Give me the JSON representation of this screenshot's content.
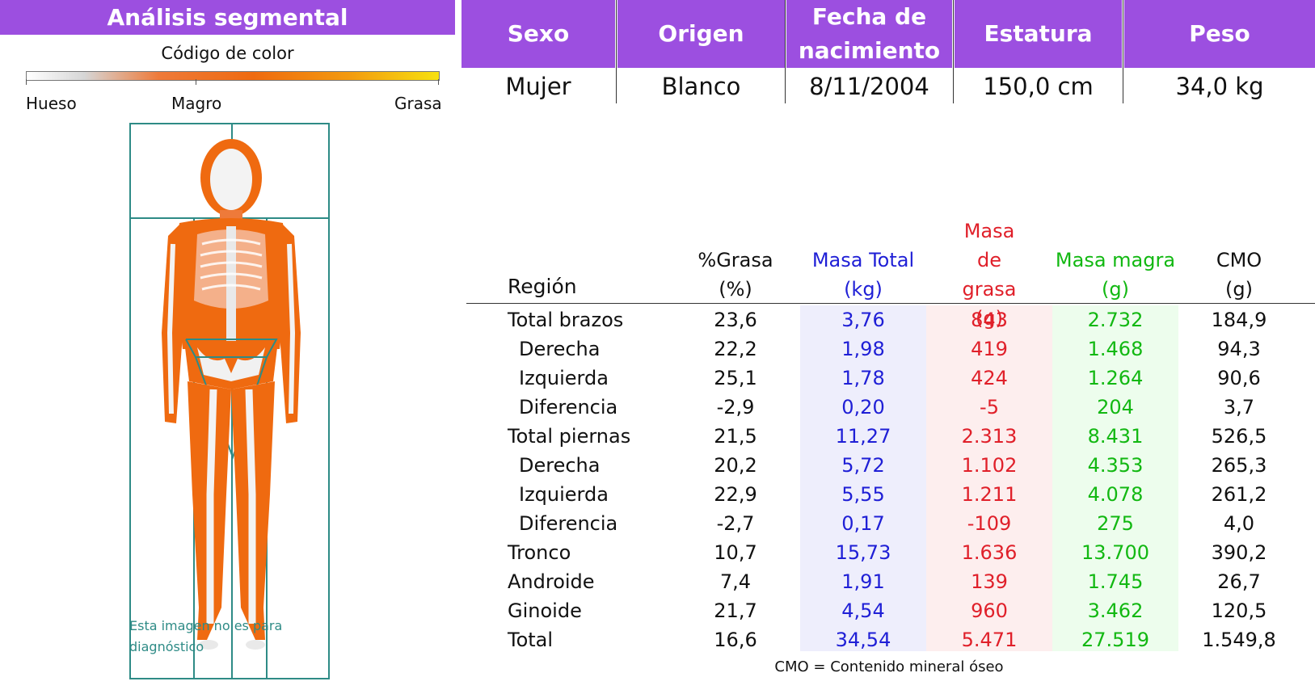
{
  "left_panel": {
    "title": "Análisis segmental",
    "color_code_label": "Código de color",
    "scale_labels": [
      "Hueso",
      "Magro",
      "Grasa"
    ],
    "watermark_line1": "Esta imagen no es para",
    "watermark_line2": "diagnóstico"
  },
  "patient": {
    "headers": [
      "Sexo",
      "Origen",
      "Fecha de nacimiento",
      "Estatura",
      "Peso"
    ],
    "values": [
      "Mujer",
      "Blanco",
      "8/11/2004",
      "150,0 cm",
      "34,0 kg"
    ]
  },
  "composition": {
    "region_header": "Región",
    "columns": [
      {
        "name": "%Grasa",
        "unit": "(%)"
      },
      {
        "name": "Masa Total",
        "unit": "(kg)"
      },
      {
        "name": "Masa de grasa",
        "unit": "(g)"
      },
      {
        "name": "Masa magra",
        "unit": "(g)"
      },
      {
        "name": "CMO",
        "unit": "(g)"
      }
    ],
    "rows": [
      {
        "region": "Total brazos",
        "cells": [
          "23,6",
          "3,76",
          "843",
          "2.732",
          "184,9"
        ]
      },
      {
        "region": "Derecha",
        "cells": [
          "22,2",
          "1,98",
          "419",
          "1.468",
          "94,3"
        ]
      },
      {
        "region": "Izquierda",
        "cells": [
          "25,1",
          "1,78",
          "424",
          "1.264",
          "90,6"
        ]
      },
      {
        "region": "Diferencia",
        "cells": [
          "-2,9",
          "0,20",
          "-5",
          "204",
          "3,7"
        ]
      },
      {
        "region": "Total piernas",
        "cells": [
          "21,5",
          "11,27",
          "2.313",
          "8.431",
          "526,5"
        ]
      },
      {
        "region": "Derecha",
        "cells": [
          "20,2",
          "5,72",
          "1.102",
          "4.353",
          "265,3"
        ]
      },
      {
        "region": "Izquierda",
        "cells": [
          "22,9",
          "5,55",
          "1.211",
          "4.078",
          "261,2"
        ]
      },
      {
        "region": "Diferencia",
        "cells": [
          "-2,7",
          "0,17",
          "-109",
          "275",
          "4,0"
        ]
      },
      {
        "region": "Tronco",
        "cells": [
          "10,7",
          "15,73",
          "1.636",
          "13.700",
          "390,2"
        ]
      },
      {
        "region": "Androide",
        "cells": [
          "7,4",
          "1,91",
          "139",
          "1.745",
          "26,7"
        ]
      },
      {
        "region": "Ginoide",
        "cells": [
          "21,7",
          "4,54",
          "960",
          "3.462",
          "120,5"
        ]
      },
      {
        "region": "Total",
        "cells": [
          "16,6",
          "34,54",
          "5.471",
          "27.519",
          "1.549,8"
        ]
      }
    ],
    "footnote": "CMO = Contenido mineral óseo"
  },
  "colors": {
    "header_purple": "#9c4fe0",
    "masa_total_text": "#1f1fd6",
    "masa_total_bg": "#eeeefc",
    "masa_grasa_text": "#e0202a",
    "masa_grasa_bg": "#fdeeee",
    "masa_magra_text": "#12b812",
    "masa_magra_bg": "#edfded"
  }
}
